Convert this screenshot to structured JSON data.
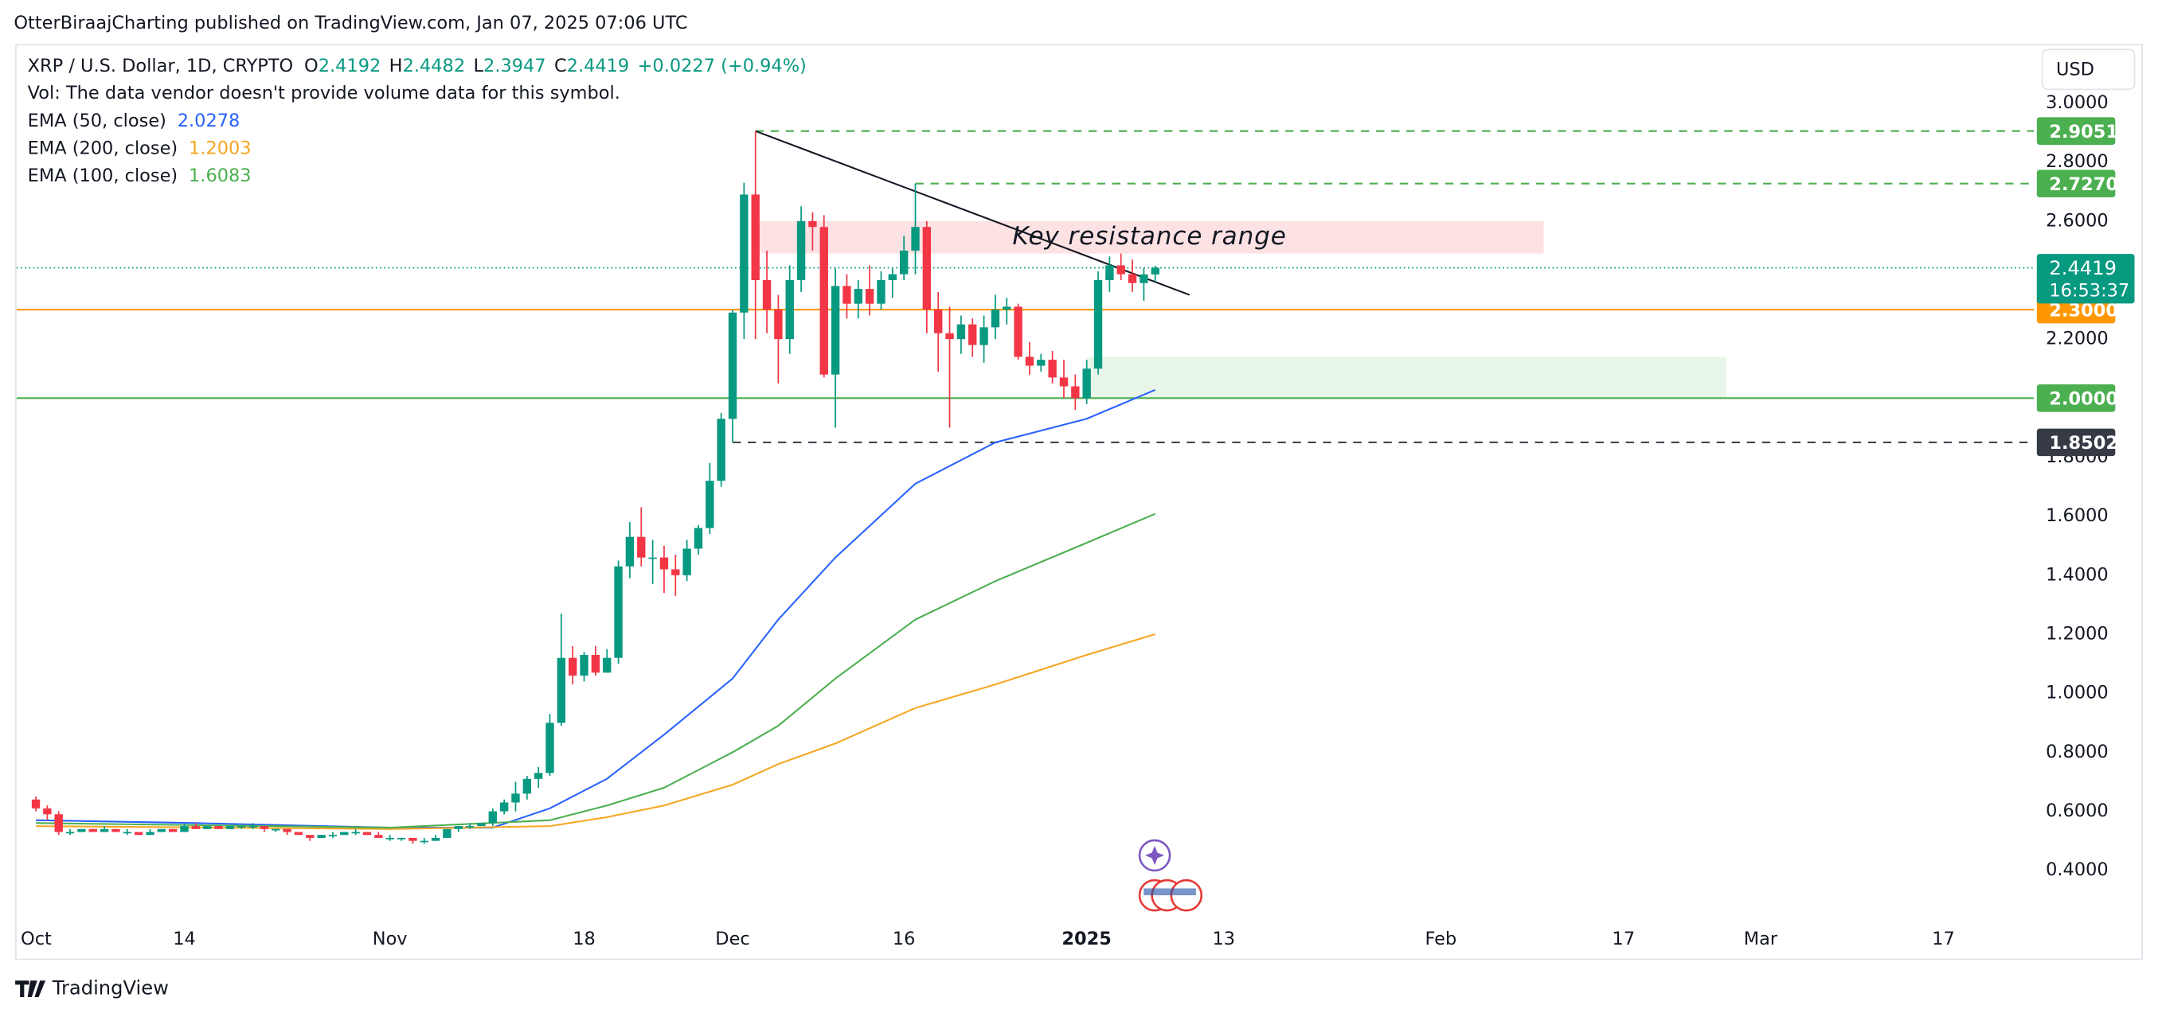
{
  "header": {
    "attribution": "OtterBiraajCharting published on TradingView.com, Jan 07, 2025 07:06 UTC",
    "footer": "TradingView"
  },
  "chart_data": {
    "type": "candlestick",
    "symbol": "XRP / U.S. Dollar, 1D, CRYPTO",
    "ohlc_letters": [
      "O",
      "H",
      "L",
      "C"
    ],
    "change": "+0.0227 (+0.94%)",
    "volume_note": "Vol: The data vendor doesn't provide volume data for this symbol.",
    "currency": "USD",
    "countdown": "16:53:37",
    "up_color": "#089981",
    "down_color": "#f23645",
    "x": [
      "2024-10-01",
      "2024-10-02",
      "2024-10-03",
      "2024-10-04",
      "2024-10-05",
      "2024-10-06",
      "2024-10-07",
      "2024-10-08",
      "2024-10-09",
      "2024-10-10",
      "2024-10-11",
      "2024-10-12",
      "2024-10-13",
      "2024-10-14",
      "2024-10-15",
      "2024-10-16",
      "2024-10-17",
      "2024-10-18",
      "2024-10-19",
      "2024-10-20",
      "2024-10-21",
      "2024-10-22",
      "2024-10-23",
      "2024-10-24",
      "2024-10-25",
      "2024-10-26",
      "2024-10-27",
      "2024-10-28",
      "2024-10-29",
      "2024-10-30",
      "2024-10-31",
      "2024-11-01",
      "2024-11-02",
      "2024-11-03",
      "2024-11-04",
      "2024-11-05",
      "2024-11-06",
      "2024-11-07",
      "2024-11-08",
      "2024-11-09",
      "2024-11-10",
      "2024-11-11",
      "2024-11-12",
      "2024-11-13",
      "2024-11-14",
      "2024-11-15",
      "2024-11-16",
      "2024-11-17",
      "2024-11-18",
      "2024-11-19",
      "2024-11-20",
      "2024-11-21",
      "2024-11-22",
      "2024-11-23",
      "2024-11-24",
      "2024-11-25",
      "2024-11-26",
      "2024-11-27",
      "2024-11-28",
      "2024-11-29",
      "2024-11-30",
      "2024-12-01",
      "2024-12-02",
      "2024-12-03",
      "2024-12-04",
      "2024-12-05",
      "2024-12-06",
      "2024-12-07",
      "2024-12-08",
      "2024-12-09",
      "2024-12-10",
      "2024-12-11",
      "2024-12-12",
      "2024-12-13",
      "2024-12-14",
      "2024-12-15",
      "2024-12-16",
      "2024-12-17",
      "2024-12-18",
      "2024-12-19",
      "2024-12-20",
      "2024-12-21",
      "2024-12-22",
      "2024-12-23",
      "2024-12-24",
      "2024-12-25",
      "2024-12-26",
      "2024-12-27",
      "2024-12-28",
      "2024-12-29",
      "2024-12-30",
      "2024-12-31",
      "2025-01-01",
      "2025-01-02",
      "2025-01-03",
      "2025-01-04",
      "2025-01-05",
      "2025-01-06",
      "2025-01-07"
    ],
    "open": [
      0.64,
      0.61,
      0.59,
      0.53,
      0.53,
      0.54,
      0.53,
      0.54,
      0.53,
      0.53,
      0.52,
      0.53,
      0.54,
      0.53,
      0.55,
      0.54,
      0.55,
      0.54,
      0.55,
      0.55,
      0.55,
      0.54,
      0.54,
      0.53,
      0.52,
      0.51,
      0.52,
      0.52,
      0.53,
      0.53,
      0.52,
      0.51,
      0.51,
      0.51,
      0.5,
      0.5,
      0.51,
      0.54,
      0.55,
      0.55,
      0.56,
      0.6,
      0.63,
      0.66,
      0.71,
      0.73,
      0.9,
      1.12,
      1.06,
      1.13,
      1.07,
      1.12,
      1.43,
      1.53,
      1.46,
      1.46,
      1.42,
      1.4,
      1.49,
      1.56,
      1.72,
      1.93,
      2.29,
      2.69,
      2.4,
      2.3,
      2.2,
      2.4,
      2.6,
      2.58,
      2.08,
      2.38,
      2.32,
      2.37,
      2.32,
      2.4,
      2.42,
      2.5,
      2.58,
      2.3,
      2.22,
      2.2,
      2.25,
      2.18,
      2.24,
      2.3,
      2.31,
      2.14,
      2.11,
      2.13,
      2.07,
      2.04,
      2.0,
      2.1,
      2.4,
      2.45,
      2.42,
      2.39,
      2.4192
    ],
    "high": [
      0.65,
      0.62,
      0.6,
      0.54,
      0.54,
      0.54,
      0.55,
      0.54,
      0.54,
      0.53,
      0.54,
      0.54,
      0.54,
      0.56,
      0.56,
      0.55,
      0.55,
      0.55,
      0.55,
      0.56,
      0.55,
      0.54,
      0.54,
      0.53,
      0.52,
      0.52,
      0.53,
      0.53,
      0.54,
      0.53,
      0.53,
      0.52,
      0.51,
      0.51,
      0.51,
      0.52,
      0.54,
      0.55,
      0.56,
      0.56,
      0.61,
      0.64,
      0.7,
      0.72,
      0.75,
      0.93,
      1.27,
      1.16,
      1.14,
      1.16,
      1.15,
      1.45,
      1.58,
      1.63,
      1.52,
      1.5,
      1.47,
      1.52,
      1.57,
      1.78,
      1.95,
      2.3,
      2.73,
      2.9051,
      2.5,
      2.35,
      2.45,
      2.65,
      2.63,
      2.62,
      2.44,
      2.42,
      2.4,
      2.45,
      2.43,
      2.44,
      2.55,
      2.727,
      2.6,
      2.36,
      2.31,
      2.28,
      2.27,
      2.28,
      2.35,
      2.34,
      2.32,
      2.19,
      2.15,
      2.16,
      2.13,
      2.08,
      2.13,
      2.43,
      2.48,
      2.49,
      2.47,
      2.44,
      2.4482
    ],
    "low": [
      0.6,
      0.57,
      0.52,
      0.52,
      0.53,
      0.53,
      0.53,
      0.53,
      0.52,
      0.52,
      0.52,
      0.53,
      0.53,
      0.53,
      0.54,
      0.54,
      0.54,
      0.54,
      0.54,
      0.54,
      0.53,
      0.53,
      0.52,
      0.52,
      0.5,
      0.51,
      0.51,
      0.52,
      0.52,
      0.52,
      0.51,
      0.5,
      0.5,
      0.49,
      0.49,
      0.5,
      0.51,
      0.53,
      0.54,
      0.55,
      0.55,
      0.59,
      0.6,
      0.64,
      0.68,
      0.72,
      0.89,
      1.03,
      1.04,
      1.06,
      1.07,
      1.1,
      1.39,
      1.43,
      1.37,
      1.34,
      1.33,
      1.38,
      1.47,
      1.54,
      1.7,
      1.85,
      2.2,
      2.2,
      2.22,
      2.05,
      2.15,
      2.36,
      2.5,
      2.07,
      1.9,
      2.27,
      2.27,
      2.28,
      2.3,
      2.34,
      2.4,
      2.42,
      2.22,
      2.09,
      1.9,
      2.15,
      2.14,
      2.12,
      2.2,
      2.25,
      2.13,
      2.08,
      2.09,
      2.05,
      2.0,
      1.96,
      1.98,
      2.08,
      2.36,
      2.4,
      2.36,
      2.33,
      2.3947
    ],
    "close": [
      0.61,
      0.59,
      0.53,
      0.53,
      0.54,
      0.53,
      0.54,
      0.53,
      0.53,
      0.52,
      0.53,
      0.54,
      0.53,
      0.55,
      0.54,
      0.55,
      0.54,
      0.55,
      0.55,
      0.55,
      0.54,
      0.54,
      0.53,
      0.52,
      0.51,
      0.52,
      0.52,
      0.53,
      0.53,
      0.52,
      0.51,
      0.51,
      0.51,
      0.5,
      0.5,
      0.51,
      0.54,
      0.55,
      0.55,
      0.56,
      0.6,
      0.63,
      0.66,
      0.71,
      0.73,
      0.9,
      1.12,
      1.06,
      1.13,
      1.07,
      1.12,
      1.43,
      1.53,
      1.46,
      1.46,
      1.42,
      1.4,
      1.49,
      1.56,
      1.72,
      1.93,
      2.29,
      2.69,
      2.4,
      2.3,
      2.2,
      2.4,
      2.6,
      2.58,
      2.08,
      2.38,
      2.32,
      2.37,
      2.32,
      2.4,
      2.42,
      2.5,
      2.58,
      2.3,
      2.22,
      2.2,
      2.25,
      2.18,
      2.24,
      2.3,
      2.31,
      2.14,
      2.11,
      2.13,
      2.07,
      2.04,
      2.0,
      2.1,
      2.4,
      2.45,
      2.42,
      2.39,
      2.4192,
      2.4419
    ],
    "series": [
      {
        "name": "EMA (50, close)",
        "color": "#2962ff",
        "x": [
          "2024-10-01",
          "2024-10-15",
          "2024-11-01",
          "2024-11-10",
          "2024-11-15",
          "2024-11-20",
          "2024-11-25",
          "2024-12-01",
          "2024-12-05",
          "2024-12-10",
          "2024-12-17",
          "2024-12-24",
          "2025-01-01",
          "2025-01-07"
        ],
        "values": [
          0.57,
          0.56,
          0.545,
          0.545,
          0.61,
          0.71,
          0.86,
          1.05,
          1.25,
          1.46,
          1.71,
          1.85,
          1.93,
          2.0278
        ]
      },
      {
        "name": "EMA (200, close)",
        "color": "#f5a623",
        "x": [
          "2024-10-01",
          "2024-11-01",
          "2024-11-15",
          "2024-11-20",
          "2024-11-25",
          "2024-12-01",
          "2024-12-05",
          "2024-12-10",
          "2024-12-17",
          "2024-12-24",
          "2025-01-01",
          "2025-01-07"
        ],
        "values": [
          0.55,
          0.54,
          0.55,
          0.58,
          0.62,
          0.69,
          0.76,
          0.83,
          0.95,
          1.03,
          1.13,
          1.2003
        ]
      },
      {
        "name": "EMA (100, close)",
        "color": "#4caf50",
        "x": [
          "2024-10-01",
          "2024-11-01",
          "2024-11-15",
          "2024-11-20",
          "2024-11-25",
          "2024-12-01",
          "2024-12-05",
          "2024-12-10",
          "2024-12-17",
          "2024-12-24",
          "2025-01-01",
          "2025-01-07"
        ],
        "values": [
          0.56,
          0.545,
          0.57,
          0.62,
          0.68,
          0.8,
          0.89,
          1.05,
          1.25,
          1.38,
          1.51,
          1.6083
        ]
      }
    ],
    "levels": [
      {
        "value": 2.9051,
        "from": "2024-12-03",
        "color": "#4caf50",
        "style": "dashed"
      },
      {
        "value": 2.727,
        "label": "2.7270",
        "from": "2024-12-17",
        "color": "#4caf50",
        "style": "dashed"
      },
      {
        "value": 2.3,
        "label": "2.3000",
        "color": "#ff9800",
        "style": "solid"
      },
      {
        "value": 2.0,
        "label": "2.0000",
        "color": "#4caf50",
        "style": "solid"
      },
      {
        "value": 1.8502,
        "from": "2024-12-01",
        "color": "#363a45",
        "style": "dashed"
      }
    ],
    "resistance_zone": {
      "text": "Key resistance range",
      "x": [
        "2024-12-03",
        "2025-02-10"
      ],
      "y": [
        2.49,
        2.6
      ],
      "color": "#fde2e4"
    },
    "support_zone": {
      "x": [
        "2025-01-01",
        "2025-02-26"
      ],
      "y": [
        2.0,
        2.14
      ],
      "color": "#e8f5e9"
    },
    "trendline": {
      "x": [
        "2024-12-03",
        "2025-01-10"
      ],
      "y": [
        2.9051,
        2.35
      ]
    },
    "xlim": [
      "2024-09-29",
      "2025-03-25"
    ],
    "xticks": [
      {
        "value": "2024-10-01",
        "label": "Oct"
      },
      {
        "value": "2024-10-14",
        "label": "14"
      },
      {
        "value": "2024-11-01",
        "label": "Nov"
      },
      {
        "value": "2024-11-18",
        "label": "18"
      },
      {
        "value": "2024-12-01",
        "label": "Dec"
      },
      {
        "value": "2024-12-16",
        "label": "16"
      },
      {
        "value": "2025-01-01",
        "label": "2025"
      },
      {
        "value": "2025-01-13",
        "label": "13"
      },
      {
        "value": "2025-02-01",
        "label": "Feb"
      },
      {
        "value": "2025-02-17",
        "label": "17"
      },
      {
        "value": "2025-03-01",
        "label": "Mar"
      },
      {
        "value": "2025-03-17",
        "label": "17"
      }
    ],
    "ylim": [
      0.227,
      3.186
    ],
    "yticks": [
      {
        "value": 0.4,
        "label": "0.4000"
      },
      {
        "value": 0.6,
        "label": "0.6000"
      },
      {
        "value": 0.8,
        "label": "0.8000"
      },
      {
        "value": 1.0,
        "label": "1.0000"
      },
      {
        "value": 1.2,
        "label": "1.2000"
      },
      {
        "value": 1.4,
        "label": "1.4000"
      },
      {
        "value": 1.6,
        "label": "1.6000"
      },
      {
        "value": 1.8,
        "label": "1.8000"
      },
      {
        "value": 2.2,
        "label": "2.2000"
      },
      {
        "value": 2.6,
        "label": "2.6000"
      },
      {
        "value": 2.8,
        "label": "2.8000"
      },
      {
        "value": 3.0,
        "label": "3.0000"
      }
    ]
  }
}
